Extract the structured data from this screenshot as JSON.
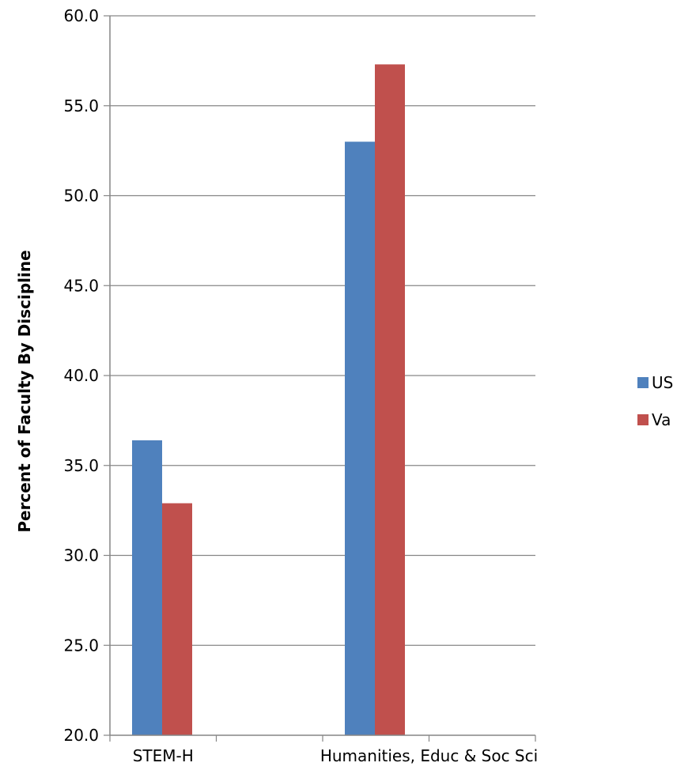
{
  "chart_data": {
    "type": "bar",
    "title": "",
    "xlabel": "",
    "ylabel": "Percent of Faculty By Discipline",
    "categories": [
      "STEM-H",
      "Humanities, Educ & Soc Sci"
    ],
    "series": [
      {
        "name": "US",
        "color": "#4F81BD",
        "values": [
          36.4,
          53.0
        ]
      },
      {
        "name": "Va",
        "color": "#C0504D",
        "values": [
          32.9,
          57.3
        ]
      }
    ],
    "ylim": [
      20,
      60
    ],
    "yticks": [
      20,
      25,
      30,
      35,
      40,
      45,
      50,
      55,
      60
    ],
    "ytick_format_decimals": 1,
    "grid": true,
    "legend_position": "right"
  }
}
